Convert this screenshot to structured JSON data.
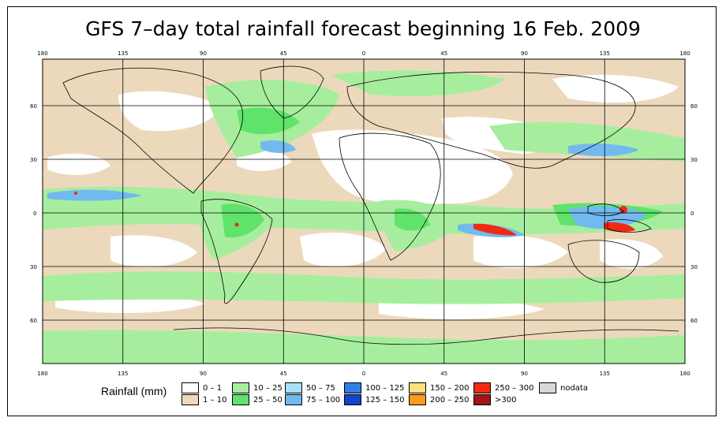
{
  "title": "GFS 7–day total rainfall forecast beginning 16 Feb. 2009",
  "axes": {
    "lon_ticks": [
      "180",
      "135",
      "90",
      "45",
      "0",
      "45",
      "90",
      "135",
      "180"
    ],
    "lat_ticks": [
      "60",
      "30",
      "0",
      "30",
      "60"
    ]
  },
  "legend": {
    "title": "Rainfall (mm)",
    "items": [
      {
        "label": "0 – 1",
        "color": "#ffffff"
      },
      {
        "label": "1 – 10",
        "color": "#ecd9bc"
      },
      {
        "label": "10 – 25",
        "color": "#a6ee9e"
      },
      {
        "label": "25 – 50",
        "color": "#5fe36a"
      },
      {
        "label": "50 – 75",
        "color": "#a9e0f7"
      },
      {
        "label": "75 – 100",
        "color": "#72b9f0"
      },
      {
        "label": "100 – 125",
        "color": "#2f7fe6"
      },
      {
        "label": "125 – 150",
        "color": "#1245c7"
      },
      {
        "label": "150 – 200",
        "color": "#ffe07a"
      },
      {
        "label": "200 – 250",
        "color": "#ff9b1a"
      },
      {
        "label": "250 – 300",
        "color": "#f22a12"
      },
      {
        "label": ">300",
        "color": "#a0141a"
      },
      {
        "label": "nodata",
        "color": "#d8d8d8"
      }
    ]
  }
}
